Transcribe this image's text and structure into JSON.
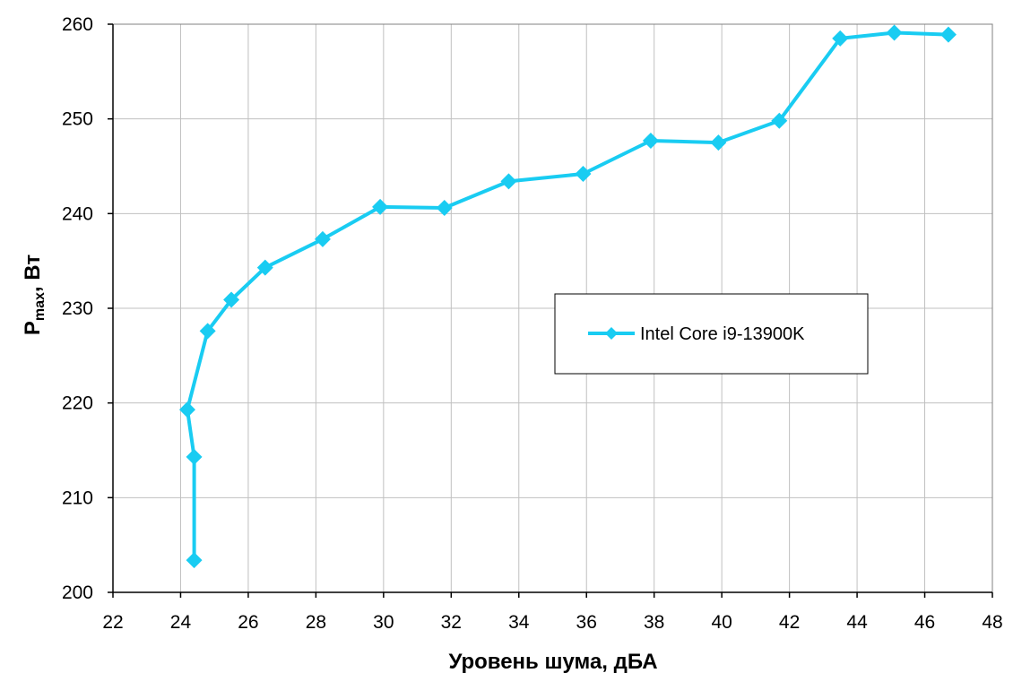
{
  "chart_data": {
    "type": "line",
    "title": "",
    "xlabel": "Уровень шума, дБА",
    "ylabel_main": "P",
    "ylabel_sub": "max",
    "ylabel_tail": ", Вт",
    "xlim": [
      22,
      48
    ],
    "ylim": [
      200,
      260
    ],
    "xticks": [
      "22",
      "24",
      "26",
      "28",
      "30",
      "32",
      "34",
      "36",
      "38",
      "40",
      "42",
      "44",
      "46",
      "48"
    ],
    "yticks": [
      "200",
      "210",
      "220",
      "230",
      "240",
      "250",
      "260"
    ],
    "grid": true,
    "legend_position": "center-right",
    "series": [
      {
        "name": "Intel Core i9-13900K",
        "color": "#19CCF2",
        "marker": "diamond",
        "x": [
          24.4,
          24.4,
          24.2,
          24.8,
          25.5,
          26.5,
          28.2,
          29.9,
          31.8,
          33.7,
          35.9,
          37.9,
          39.9,
          41.7,
          43.5,
          45.1,
          46.7
        ],
        "y": [
          203.4,
          214.3,
          219.3,
          227.6,
          230.9,
          234.3,
          237.3,
          240.7,
          240.6,
          243.4,
          244.2,
          247.7,
          247.5,
          249.8,
          258.5,
          259.1,
          258.9
        ]
      }
    ]
  }
}
